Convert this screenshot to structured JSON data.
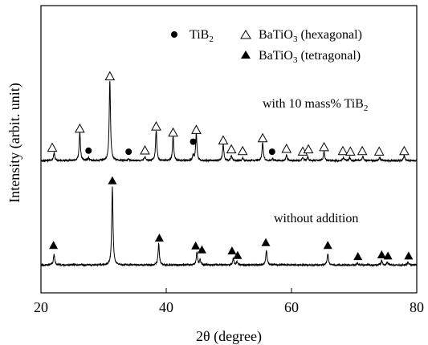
{
  "chart_data": {
    "type": "line",
    "xlabel": "2θ (degree)",
    "ylabel": "Intensity (arbit. unit)",
    "xlim": [
      20,
      80
    ],
    "x_ticks": [
      20,
      40,
      60,
      80
    ],
    "y_ticks_shown": false,
    "legend": {
      "placement": "top-right",
      "items": [
        {
          "marker": "filled-circle",
          "label": "TiB",
          "sub": "2"
        },
        {
          "marker": "open-triangle",
          "label": "BaTiO",
          "sub": "3",
          "suffix": " (hexagonal)"
        },
        {
          "marker": "filled-triangle",
          "label": "BaTiO",
          "sub": "3",
          "suffix": " (tetragonal)"
        }
      ]
    },
    "series": [
      {
        "name": "with 10 mass% TiB2",
        "annotation": {
          "text": "with 10 mass% TiB",
          "sub": "2"
        },
        "baseline": 0.12,
        "noise": 0.015,
        "peaks": [
          {
            "x": 22.1,
            "h": 0.14
          },
          {
            "x": 26.2,
            "h": 0.52
          },
          {
            "x": 27.6,
            "h": 0.05
          },
          {
            "x": 31.0,
            "h": 1.45
          },
          {
            "x": 34.0,
            "h": 0.03
          },
          {
            "x": 36.6,
            "h": 0.07
          },
          {
            "x": 38.4,
            "h": 0.55
          },
          {
            "x": 41.1,
            "h": 0.44
          },
          {
            "x": 44.3,
            "h": 0.09
          },
          {
            "x": 44.8,
            "h": 0.49
          },
          {
            "x": 49.1,
            "h": 0.3
          },
          {
            "x": 50.4,
            "h": 0.09
          },
          {
            "x": 52.2,
            "h": 0.05
          },
          {
            "x": 55.4,
            "h": 0.33
          },
          {
            "x": 57.0,
            "h": 0.04
          },
          {
            "x": 59.2,
            "h": 0.1
          },
          {
            "x": 61.8,
            "h": 0.05
          },
          {
            "x": 62.6,
            "h": 0.07
          },
          {
            "x": 65.2,
            "h": 0.17
          },
          {
            "x": 68.3,
            "h": 0.06
          },
          {
            "x": 69.3,
            "h": 0.06
          },
          {
            "x": 71.4,
            "h": 0.08
          },
          {
            "x": 74.1,
            "h": 0.06
          },
          {
            "x": 78.0,
            "h": 0.1
          }
        ],
        "markers": [
          {
            "x": 21.8,
            "shape": "open-triangle",
            "h": 0.24
          },
          {
            "x": 26.2,
            "shape": "open-triangle",
            "h": 0.58
          },
          {
            "x": 27.6,
            "shape": "filled-circle",
            "h": 0.18
          },
          {
            "x": 31.0,
            "shape": "open-triangle",
            "h": 1.52
          },
          {
            "x": 34.0,
            "shape": "filled-circle",
            "h": 0.16
          },
          {
            "x": 36.6,
            "shape": "open-triangle",
            "h": 0.19
          },
          {
            "x": 38.4,
            "shape": "open-triangle",
            "h": 0.62
          },
          {
            "x": 41.1,
            "shape": "open-triangle",
            "h": 0.51
          },
          {
            "x": 44.3,
            "shape": "filled-circle",
            "h": 0.34
          },
          {
            "x": 44.8,
            "shape": "open-triangle",
            "h": 0.56
          },
          {
            "x": 49.1,
            "shape": "open-triangle",
            "h": 0.37
          },
          {
            "x": 50.4,
            "shape": "open-triangle",
            "h": 0.21
          },
          {
            "x": 52.2,
            "shape": "open-triangle",
            "h": 0.18
          },
          {
            "x": 55.4,
            "shape": "open-triangle",
            "h": 0.41
          },
          {
            "x": 56.9,
            "shape": "filled-circle",
            "h": 0.16
          },
          {
            "x": 59.2,
            "shape": "open-triangle",
            "h": 0.22
          },
          {
            "x": 61.8,
            "shape": "open-triangle",
            "h": 0.17
          },
          {
            "x": 62.7,
            "shape": "open-triangle",
            "h": 0.21
          },
          {
            "x": 65.2,
            "shape": "open-triangle",
            "h": 0.25
          },
          {
            "x": 68.2,
            "shape": "open-triangle",
            "h": 0.18
          },
          {
            "x": 69.4,
            "shape": "open-triangle",
            "h": 0.17
          },
          {
            "x": 71.3,
            "shape": "open-triangle",
            "h": 0.18
          },
          {
            "x": 74.0,
            "shape": "open-triangle",
            "h": 0.17
          },
          {
            "x": 78.0,
            "shape": "open-triangle",
            "h": 0.18
          }
        ]
      },
      {
        "name": "without addition",
        "annotation": {
          "text": "without addition",
          "sub": ""
        },
        "baseline": -1.75,
        "noise": 0.015,
        "peaks": [
          {
            "x": 22.1,
            "h": 0.2
          },
          {
            "x": 31.4,
            "h": 1.4
          },
          {
            "x": 38.8,
            "h": 0.38
          },
          {
            "x": 44.9,
            "h": 0.22
          },
          {
            "x": 45.4,
            "h": 0.1
          },
          {
            "x": 50.7,
            "h": 0.12
          },
          {
            "x": 51.3,
            "h": 0.06
          },
          {
            "x": 56.0,
            "h": 0.27
          },
          {
            "x": 65.8,
            "h": 0.2
          },
          {
            "x": 70.5,
            "h": 0.04
          },
          {
            "x": 74.4,
            "h": 0.07
          },
          {
            "x": 75.3,
            "h": 0.05
          },
          {
            "x": 78.6,
            "h": 0.05
          }
        ],
        "markers": [
          {
            "x": 22.0,
            "shape": "filled-triangle",
            "h": 0.36
          },
          {
            "x": 31.4,
            "shape": "filled-triangle",
            "h": 1.52
          },
          {
            "x": 38.9,
            "shape": "filled-triangle",
            "h": 0.49
          },
          {
            "x": 44.7,
            "shape": "filled-triangle",
            "h": 0.35
          },
          {
            "x": 45.7,
            "shape": "filled-triangle",
            "h": 0.28
          },
          {
            "x": 50.5,
            "shape": "filled-triangle",
            "h": 0.26
          },
          {
            "x": 51.4,
            "shape": "filled-triangle",
            "h": 0.18
          },
          {
            "x": 55.9,
            "shape": "filled-triangle",
            "h": 0.41
          },
          {
            "x": 65.8,
            "shape": "filled-triangle",
            "h": 0.36
          },
          {
            "x": 70.6,
            "shape": "filled-triangle",
            "h": 0.16
          },
          {
            "x": 74.4,
            "shape": "filled-triangle",
            "h": 0.19
          },
          {
            "x": 75.4,
            "shape": "filled-triangle",
            "h": 0.17
          },
          {
            "x": 78.7,
            "shape": "filled-triangle",
            "h": 0.17
          }
        ]
      }
    ]
  }
}
